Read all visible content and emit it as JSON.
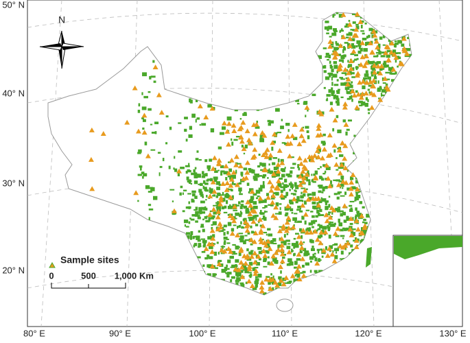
{
  "map": {
    "lat_labels": [
      "50° N",
      "40° N",
      "30° N",
      "20° N"
    ],
    "lon_labels": [
      "80° E",
      "90° E",
      "100° E",
      "110° E",
      "120° E",
      "130° E"
    ],
    "north_arrow": "N",
    "legend": {
      "label": "Sample sites"
    },
    "scale_bar": {
      "labels": [
        "0",
        "500",
        "1,000"
      ],
      "unit": "Km"
    }
  }
}
